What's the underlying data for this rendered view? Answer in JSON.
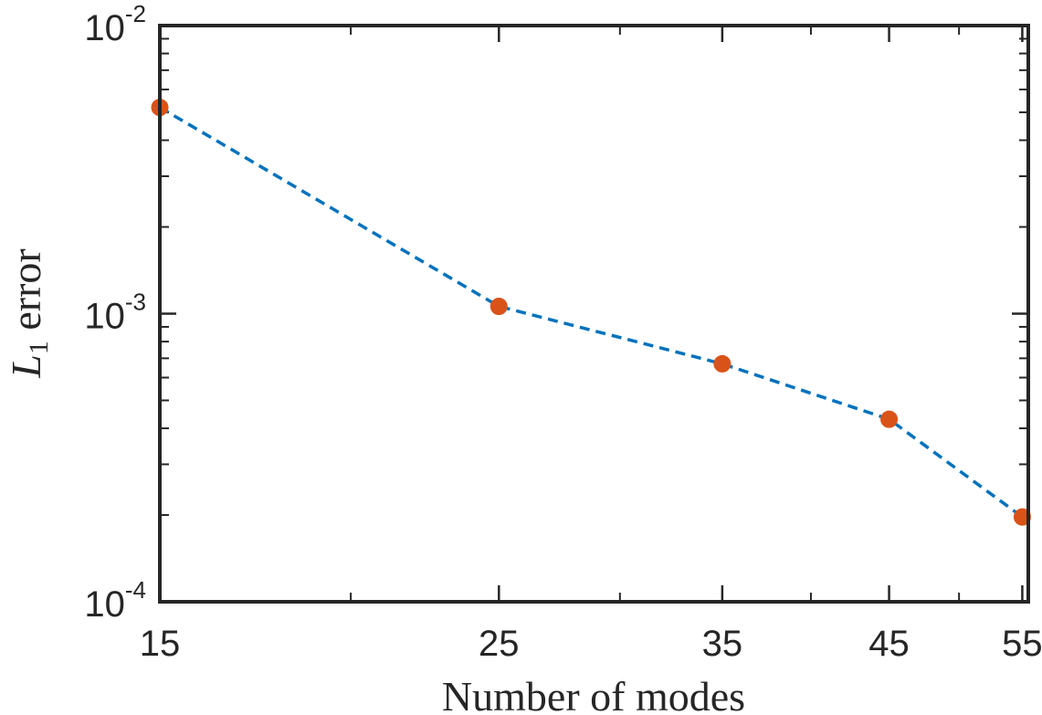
{
  "chart_data": {
    "type": "line",
    "title": "",
    "xlabel": "Number of modes",
    "ylabel": {
      "base": "L",
      "subscript": "1",
      "rest": " error"
    },
    "x_scale": "log",
    "y_scale": "log",
    "xlim": [
      15,
      55.5
    ],
    "ylim": [
      0.0001,
      0.01
    ],
    "x_ticks": [
      15,
      25,
      35,
      45,
      55
    ],
    "x_tick_labels": [
      "15",
      "25",
      "35",
      "45",
      "55"
    ],
    "y_ticks": [
      0.0001,
      0.001,
      0.01
    ],
    "y_tick_labels": [
      {
        "base": "10",
        "exp": "-4"
      },
      {
        "base": "10",
        "exp": "-3"
      },
      {
        "base": "10",
        "exp": "-2"
      }
    ],
    "grid": false,
    "box": true,
    "series": [
      {
        "x": [
          15,
          25,
          35,
          45,
          55
        ],
        "y": [
          0.0052,
          0.00106,
          0.00067,
          0.00043,
          0.000197
        ],
        "line_color": "#0072BD",
        "line_style": "dashed",
        "marker_color": "#D95319",
        "marker": "circle"
      }
    ]
  }
}
